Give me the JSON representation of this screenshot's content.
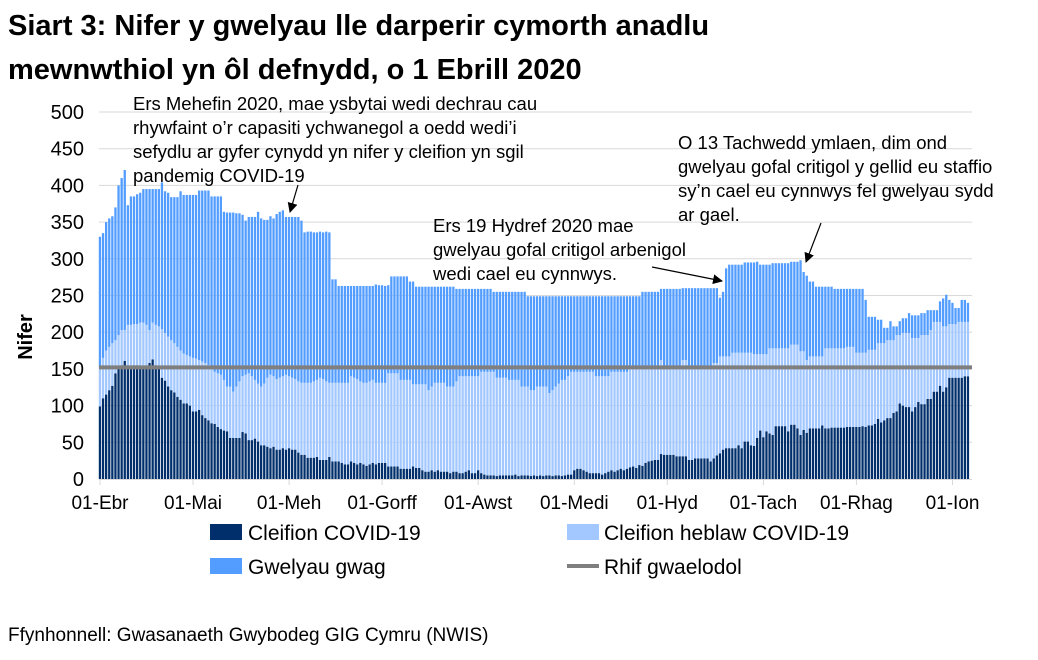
{
  "title_lines": [
    "Siart 3: Nifer y gwelyau lle darperir cymorth anadlu",
    "mewnwthiol yn ôl defnydd, o 1 Ebrill 2020"
  ],
  "source": "Ffynhonnell: Gwasanaeth Gwybodeg GIG Cymru (NWIS)",
  "chart_data": {
    "type": "bar",
    "stacked": true,
    "title": "Siart 3: Nifer y gwelyau lle darperir cymorth anadlu mewnwthiol yn ôl defnydd, o 1 Ebrill 2020",
    "xlabel": "",
    "ylabel": "Nifer",
    "ylim": [
      0,
      500
    ],
    "yticks": [
      "0",
      "50",
      "100",
      "150",
      "200",
      "250",
      "300",
      "350",
      "400",
      "450",
      "500"
    ],
    "grid": true,
    "legend_position": "bottom",
    "x_start": "2020-04-01",
    "x_end": "2021-01-06",
    "x_step": "1 day",
    "xtick_labels": [
      {
        "label": "01-Ebr",
        "date": "2020-04-01"
      },
      {
        "label": "01-Mai",
        "date": "2020-05-01"
      },
      {
        "label": "01-Meh",
        "date": "2020-06-01"
      },
      {
        "label": "01-Gorff",
        "date": "2020-07-01"
      },
      {
        "label": "01-Awst",
        "date": "2020-08-01"
      },
      {
        "label": "01-Medi",
        "date": "2020-09-01"
      },
      {
        "label": "01-Hyd",
        "date": "2020-10-01"
      },
      {
        "label": "01-Tach",
        "date": "2020-11-01"
      },
      {
        "label": "01-Rhag",
        "date": "2020-12-01"
      },
      {
        "label": "01-Ion",
        "date": "2021-01-01"
      }
    ],
    "series": [
      {
        "name": "Cleifion COVID-19",
        "color": "#002f6c",
        "values": [
          99,
          110,
          115,
          121,
          127,
          144,
          152,
          155,
          161,
          155,
          153,
          155,
          155,
          152,
          152,
          153,
          158,
          163,
          155,
          150,
          138,
          134,
          126,
          121,
          118,
          112,
          108,
          103,
          103,
          100,
          92,
          92,
          94,
          87,
          83,
          80,
          76,
          75,
          71,
          68,
          66,
          65,
          56,
          56,
          56,
          56,
          64,
          62,
          53,
          53,
          55,
          51,
          46,
          46,
          44,
          42,
          44,
          40,
          40,
          42,
          40,
          42,
          40,
          40,
          36,
          33,
          33,
          29,
          29,
          29,
          30,
          26,
          26,
          26,
          30,
          24,
          24,
          24,
          22,
          20,
          20,
          24,
          22,
          20,
          22,
          20,
          18,
          20,
          22,
          20,
          22,
          22,
          22,
          17,
          17,
          17,
          17,
          14,
          14,
          14,
          14,
          17,
          15,
          15,
          12,
          10,
          10,
          12,
          10,
          12,
          10,
          10,
          10,
          8,
          10,
          10,
          8,
          8,
          10,
          12,
          8,
          8,
          12,
          8,
          6,
          5,
          5,
          5,
          4,
          5,
          5,
          5,
          5,
          5,
          6,
          4,
          5,
          5,
          5,
          4,
          5,
          4,
          5,
          4,
          5,
          5,
          4,
          5,
          5,
          4,
          5,
          6,
          6,
          12,
          14,
          14,
          12,
          10,
          8,
          8,
          8,
          8,
          6,
          8,
          10,
          12,
          10,
          12,
          14,
          12,
          14,
          16,
          17,
          15,
          19,
          18,
          22,
          24,
          25,
          26,
          26,
          34,
          33,
          33,
          33,
          33,
          31,
          31,
          31,
          31,
          26,
          26,
          28,
          28,
          28,
          28,
          28,
          24,
          28,
          32,
          35,
          40,
          42,
          42,
          42,
          42,
          46,
          42,
          51,
          51,
          46,
          45,
          56,
          66,
          57,
          65,
          62,
          60,
          72,
          72,
          72,
          72,
          65,
          74,
          74,
          69,
          60,
          67,
          63,
          69,
          69,
          69,
          69,
          73,
          69,
          69,
          70,
          70,
          70,
          70,
          70,
          71,
          71,
          71,
          71,
          71,
          72,
          71,
          73,
          73,
          75,
          82,
          77,
          80,
          83,
          83,
          90,
          92,
          103,
          100,
          98,
          98,
          92,
          98,
          105,
          102,
          102,
          109,
          109,
          119,
          119,
          127,
          119,
          125,
          138,
          138,
          138,
          138,
          138,
          140,
          140
        ]
      },
      {
        "name": "Cleifion heblaw COVID-19",
        "color": "#a3c8ff",
        "values": [
          54,
          55,
          60,
          59,
          58,
          45,
          44,
          48,
          42,
          55,
          57,
          56,
          56,
          61,
          61,
          57,
          45,
          50,
          55,
          58,
          66,
          65,
          68,
          68,
          67,
          68,
          67,
          68,
          66,
          67,
          73,
          72,
          68,
          73,
          75,
          75,
          74,
          71,
          73,
          74,
          69,
          61,
          70,
          63,
          70,
          77,
          76,
          80,
          91,
          87,
          80,
          79,
          80,
          84,
          94,
          100,
          96,
          96,
          98,
          98,
          102,
          98,
          98,
          96,
          97,
          98,
          98,
          102,
          102,
          104,
          105,
          112,
          110,
          107,
          101,
          107,
          107,
          107,
          109,
          111,
          111,
          116,
          116,
          116,
          111,
          111,
          113,
          113,
          113,
          111,
          109,
          109,
          109,
          127,
          127,
          127,
          127,
          121,
          121,
          121,
          121,
          112,
          114,
          114,
          117,
          119,
          111,
          114,
          121,
          119,
          121,
          121,
          116,
          118,
          116,
          123,
          132,
          132,
          130,
          128,
          132,
          132,
          128,
          138,
          140,
          141,
          141,
          141,
          134,
          133,
          133,
          133,
          130,
          130,
          129,
          131,
          121,
          121,
          121,
          117,
          116,
          122,
          121,
          122,
          121,
          112,
          117,
          121,
          125,
          131,
          130,
          134,
          140,
          134,
          132,
          132,
          134,
          136,
          138,
          138,
          132,
          132,
          134,
          132,
          130,
          134,
          136,
          134,
          132,
          134,
          132,
          134,
          133,
          135,
          131,
          132,
          128,
          126,
          125,
          124,
          124,
          128,
          120,
          120,
          120,
          120,
          122,
          122,
          131,
          131,
          127,
          127,
          125,
          125,
          125,
          125,
          125,
          129,
          130,
          126,
          132,
          127,
          125,
          125,
          130,
          130,
          126,
          130,
          121,
          121,
          126,
          125,
          114,
          104,
          113,
          105,
          116,
          118,
          106,
          106,
          106,
          106,
          113,
          109,
          109,
          114,
          114,
          107,
          99,
          98,
          98,
          98,
          98,
          94,
          109,
          109,
          108,
          108,
          108,
          108,
          108,
          109,
          109,
          109,
          101,
          101,
          100,
          101,
          103,
          103,
          101,
          103,
          108,
          105,
          106,
          106,
          99,
          104,
          93,
          99,
          101,
          101,
          100,
          94,
          87,
          94,
          94,
          87,
          94,
          95,
          95,
          87,
          89,
          83,
          73,
          73,
          73,
          76,
          76,
          74,
          74
        ]
      },
      {
        "name": "Gwelyau gwag",
        "color": "#529dff",
        "values": [
          177,
          170,
          175,
          175,
          173,
          181,
          204,
          207,
          218,
          163,
          175,
          174,
          177,
          177,
          182,
          185,
          192,
          182,
          185,
          187,
          200,
          193,
          196,
          195,
          199,
          204,
          217,
          216,
          218,
          220,
          222,
          223,
          231,
          233,
          235,
          238,
          235,
          239,
          241,
          243,
          229,
          237,
          237,
          244,
          236,
          229,
          220,
          210,
          213,
          217,
          222,
          234,
          229,
          223,
          215,
          216,
          215,
          225,
          226,
          226,
          215,
          217,
          219,
          221,
          224,
          221,
          205,
          206,
          206,
          203,
          201,
          199,
          200,
          204,
          205,
          141,
          141,
          132,
          132,
          132,
          132,
          123,
          125,
          127,
          130,
          132,
          132,
          130,
          128,
          134,
          133,
          133,
          132,
          120,
          132,
          132,
          132,
          141,
          141,
          141,
          134,
          140,
          133,
          133,
          133,
          133,
          141,
          136,
          131,
          131,
          131,
          131,
          136,
          136,
          136,
          126,
          119,
          119,
          119,
          119,
          119,
          119,
          119,
          113,
          113,
          113,
          113,
          109,
          117,
          117,
          117,
          117,
          120,
          120,
          120,
          120,
          129,
          129,
          123,
          128,
          128,
          123,
          123,
          123,
          123,
          132,
          128,
          123,
          119,
          114,
          114,
          109,
          103,
          103,
          103,
          103,
          103,
          103,
          103,
          103,
          109,
          109,
          109,
          109,
          109,
          103,
          103,
          103,
          103,
          103,
          103,
          99,
          99,
          99,
          99,
          105,
          105,
          105,
          105,
          105,
          105,
          97,
          106,
          106,
          106,
          106,
          106,
          106,
          98,
          98,
          107,
          107,
          107,
          107,
          107,
          107,
          107,
          107,
          102,
          102,
          80,
          88,
          120,
          125,
          120,
          120,
          120,
          120,
          123,
          123,
          123,
          125,
          126,
          122,
          122,
          122,
          114,
          116,
          116,
          116,
          116,
          116,
          116,
          113,
          113,
          113,
          124,
          108,
          115,
          102,
          102,
          95,
          95,
          95,
          84,
          84,
          84,
          81,
          81,
          81,
          81,
          79,
          79,
          79,
          87,
          87,
          87,
          72,
          45,
          45,
          45,
          32,
          32,
          21,
          17,
          26,
          19,
          12,
          19,
          20,
          20,
          27,
          31,
          31,
          31,
          30,
          30,
          34,
          27,
          16,
          16,
          28,
          38,
          43,
          33,
          29,
          22,
          19,
          30,
          30,
          26
        ]
      }
    ],
    "reference_line": {
      "name": "Rhif gwaelodol",
      "value": 152,
      "color": "#7f7f7f"
    },
    "annotations": [
      {
        "lines": [
          "Ers Mehefin 2020, mae ysbytai wedi dechrau cau",
          "rhywfaint o’r capasiti ychwanegol a oedd wedi’i",
          "sefydlu ar gyfer cynydd yn nifer y cleifion yn sgil",
          "pandemig COVID-19"
        ],
        "points_to": "2020-06-01"
      },
      {
        "lines": [
          "Ers 19 Hydref 2020 mae",
          "gwelyau gofal critigol arbenigol",
          "wedi cael eu cynnwys."
        ],
        "points_to": "2020-10-19"
      },
      {
        "lines": [
          "O 13 Tachwedd ymlaen, dim ond",
          "gwelyau gofal critigol y gellid eu staffio",
          "sy’n cael eu cynnwys fel gwelyau sydd",
          "ar gael."
        ],
        "points_to": "2020-11-13"
      }
    ]
  }
}
